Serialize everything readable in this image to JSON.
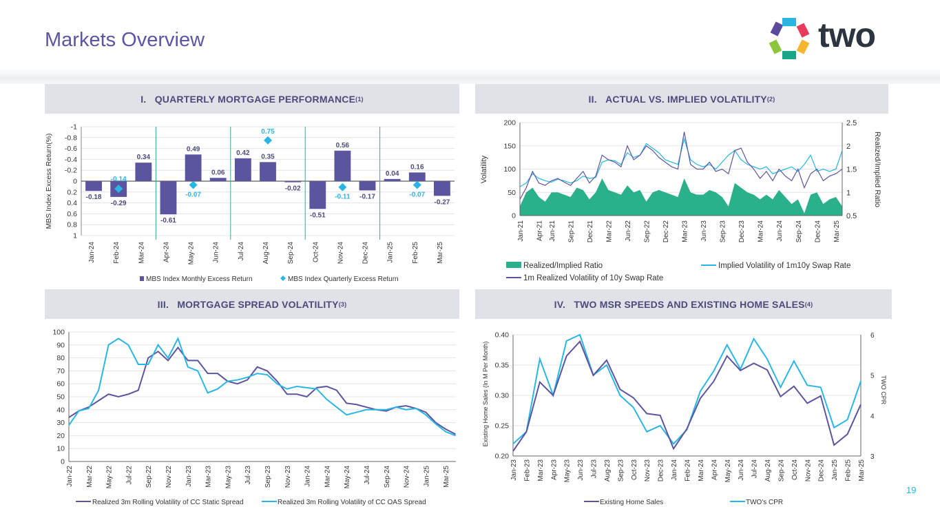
{
  "page": {
    "title": "Markets Overview",
    "page_number": "19",
    "logo_text": "two"
  },
  "panels": [
    {
      "num": "I.",
      "title": "QUARTERLY MORTGAGE PERFORMANCE",
      "note": "(1)"
    },
    {
      "num": "II.",
      "title": "ACTUAL VS. IMPLIED VOLATILITY",
      "note": "(2)"
    },
    {
      "num": "III.",
      "title": "MORTGAGE SPREAD VOLATILITY",
      "note": "(3)"
    },
    {
      "num": "IV.",
      "title": "TWO MSR SPEEDS AND EXISTING HOME SALES",
      "note": "(4)"
    }
  ],
  "colors": {
    "purple": "#5b55a0",
    "cyan": "#29b6e6",
    "green": "#2ab08a",
    "title": "#5a56a3"
  },
  "chart_data": [
    {
      "type": "bar",
      "ylabel": "MBS Index  Excess Return(%)",
      "ylim": [
        -1,
        1
      ],
      "yticks": [
        "1",
        "0.8",
        "0.6",
        "0.4",
        "0.2",
        "0",
        "-0.2",
        "-0.4",
        "-0.6",
        "-0.8",
        "-1"
      ],
      "categories": [
        "Jan-24",
        "Feb-24",
        "Mar-24",
        "Apr-24",
        "May-24",
        "Jun-24",
        "Jul-24",
        "Aug-24",
        "Sep-24",
        "Oct-24",
        "Nov-24",
        "Dec-24",
        "Jan-25",
        "Feb-25",
        "Mar-25"
      ],
      "series": [
        {
          "name": "MBS Index Monthly Excess Return",
          "values": [
            -0.18,
            -0.29,
            0.34,
            -0.61,
            0.49,
            0.06,
            0.42,
            0.35,
            -0.02,
            -0.51,
            0.56,
            -0.17,
            0.04,
            0.16,
            -0.27
          ]
        },
        {
          "name": "MBS Index Quarterly Excess Return",
          "values": [
            null,
            -0.14,
            null,
            null,
            -0.07,
            null,
            null,
            0.75,
            null,
            null,
            -0.11,
            null,
            null,
            -0.07,
            null
          ]
        }
      ],
      "legend": "bottom"
    },
    {
      "type": "line",
      "ylabel": "Volatility",
      "y2label": "Realized/Implied Ratio",
      "ylim": [
        0,
        200
      ],
      "y2lim": [
        0.5,
        2.5
      ],
      "yticks": [
        "0",
        "50",
        "100",
        "150",
        "200"
      ],
      "y2ticks": [
        "0.5",
        "1",
        "1.5",
        "2",
        "2.5"
      ],
      "xticks": [
        "Jan-21",
        "Apr-21",
        "Jun-21",
        "Sep-21",
        "Dec-21",
        "Mar-22",
        "Jun-22",
        "Sep-22",
        "Dec-22",
        "Mar-23",
        "Jun-23",
        "Sep-23",
        "Dec-23",
        "Mar-24",
        "Jun-24",
        "Sep-24",
        "Dec-24",
        "Mar-25"
      ],
      "x_start": "Jan-21",
      "x_step": "monthly",
      "series": [
        {
          "name": "Realized/Implied Ratio",
          "axis": "right",
          "kind": "area",
          "values": [
            0.7,
            1.0,
            1.1,
            0.9,
            0.8,
            1.0,
            1.0,
            0.95,
            0.9,
            1.1,
            1.05,
            0.85,
            1.0,
            1.3,
            1.05,
            1.0,
            0.95,
            1.15,
            1.0,
            1.05,
            0.8,
            1.0,
            1.05,
            1.0,
            0.95,
            0.9,
            1.3,
            1.0,
            0.95,
            0.95,
            1.05,
            1.0,
            0.9,
            0.7,
            1.2,
            1.1,
            1.0,
            0.95,
            0.85,
            0.95,
            0.85,
            1.05,
            0.9,
            0.75,
            0.85,
            0.55,
            0.95,
            1.0,
            0.75,
            0.85,
            0.9,
            0.7
          ]
        },
        {
          "name": "Implied Volatility of 1m10y Swap Rate",
          "axis": "left",
          "values": [
            62,
            70,
            90,
            80,
            75,
            72,
            78,
            75,
            70,
            75,
            85,
            80,
            82,
            115,
            120,
            118,
            110,
            135,
            125,
            130,
            155,
            145,
            135,
            120,
            115,
            110,
            165,
            120,
            110,
            105,
            110,
            100,
            115,
            130,
            140,
            120,
            110,
            105,
            100,
            105,
            90,
            95,
            100,
            105,
            95,
            110,
            130,
            95,
            100,
            95,
            100,
            140
          ]
        },
        {
          "name": "1m Realized Volatility of 10y Swap Rate",
          "axis": "left",
          "values": [
            35,
            60,
            95,
            70,
            65,
            75,
            80,
            72,
            65,
            80,
            95,
            70,
            85,
            130,
            120,
            115,
            105,
            150,
            120,
            130,
            150,
            140,
            125,
            115,
            105,
            100,
            180,
            110,
            100,
            100,
            115,
            95,
            100,
            90,
            140,
            145,
            115,
            100,
            80,
            95,
            75,
            100,
            85,
            75,
            100,
            60,
            90,
            100,
            75,
            85,
            90,
            100
          ]
        }
      ],
      "legend": "bottom"
    },
    {
      "type": "line",
      "ylim": [
        0,
        100
      ],
      "yticks": [
        "0",
        "10",
        "20",
        "30",
        "40",
        "50",
        "60",
        "70",
        "80",
        "90",
        "100"
      ],
      "xticks": [
        "Jan-22",
        "Mar-22",
        "May-22",
        "Jul-22",
        "Sep-22",
        "Nov-22",
        "Jan-23",
        "Mar-23",
        "May-23",
        "Jul-23",
        "Sep-23",
        "Nov-23",
        "Jan-24",
        "Mar-24",
        "May-24",
        "Jul-24",
        "Sep-24",
        "Nov-24",
        "Jan-25",
        "Mar-25"
      ],
      "x_start": "Jan-22",
      "x_step": "monthly",
      "series": [
        {
          "name": "Realized 3m Rolling Volatility of CC Static Spread",
          "values": [
            34,
            39,
            42,
            47,
            52,
            50,
            52,
            55,
            80,
            85,
            78,
            88,
            78,
            78,
            68,
            68,
            62,
            60,
            63,
            73,
            70,
            62,
            52,
            52,
            50,
            57,
            58,
            55,
            45,
            44,
            42,
            40,
            39,
            42,
            43,
            41,
            38,
            30,
            25,
            21
          ]
        },
        {
          "name": "Realized 3m Rolling Volatility of CC OAS Spread",
          "values": [
            28,
            39,
            41,
            55,
            90,
            95,
            90,
            75,
            75,
            90,
            80,
            95,
            73,
            70,
            53,
            56,
            62,
            63,
            65,
            68,
            67,
            60,
            56,
            58,
            57,
            56,
            48,
            42,
            36,
            38,
            40,
            40,
            40,
            42,
            40,
            41,
            36,
            29,
            23,
            20
          ]
        }
      ],
      "legend": "bottom"
    },
    {
      "type": "line",
      "ylabel": "Existing Home Sales (In M Per Month)",
      "y2label": "TWO CPR",
      "ylim": [
        0.2,
        0.4
      ],
      "y2lim": [
        3,
        6
      ],
      "yticks": [
        "0.20",
        "0.25",
        "0.30",
        "0.35",
        "0.40"
      ],
      "y2ticks": [
        "3",
        "4",
        "5",
        "6"
      ],
      "categories": [
        "Jan-23",
        "Feb-23",
        "Mar-23",
        "Apr-23",
        "May-23",
        "Jun-23",
        "Jul-23",
        "Aug-23",
        "Sep-23",
        "Oct-23",
        "Nov-23",
        "Dec-23",
        "Jan-24",
        "Feb-24",
        "Mar-24",
        "Apr-24",
        "May-24",
        "Jun-24",
        "Jul-24",
        "Aug-24",
        "Sep-24",
        "Oct-24",
        "Nov-24",
        "Dec-24",
        "Jan-25",
        "Feb-25",
        "Mar-25"
      ],
      "series": [
        {
          "name": "Existing Home Sales",
          "axis": "left",
          "values": [
            0.208,
            0.24,
            0.322,
            0.3,
            0.365,
            0.389,
            0.333,
            0.358,
            0.31,
            0.296,
            0.27,
            0.267,
            0.212,
            0.245,
            0.295,
            0.323,
            0.365,
            0.341,
            0.353,
            0.342,
            0.298,
            0.315,
            0.287,
            0.299,
            0.218,
            0.236,
            0.285
          ]
        },
        {
          "name": "TWO's CPR",
          "axis": "right",
          "values": [
            3.3,
            3.6,
            5.4,
            4.5,
            5.85,
            6.0,
            5.0,
            5.25,
            4.5,
            4.2,
            3.6,
            3.75,
            3.3,
            3.65,
            4.6,
            5.1,
            5.75,
            5.15,
            5.9,
            5.4,
            4.7,
            5.35,
            4.75,
            4.7,
            3.7,
            3.9,
            4.85
          ]
        }
      ],
      "legend": "bottom"
    }
  ]
}
